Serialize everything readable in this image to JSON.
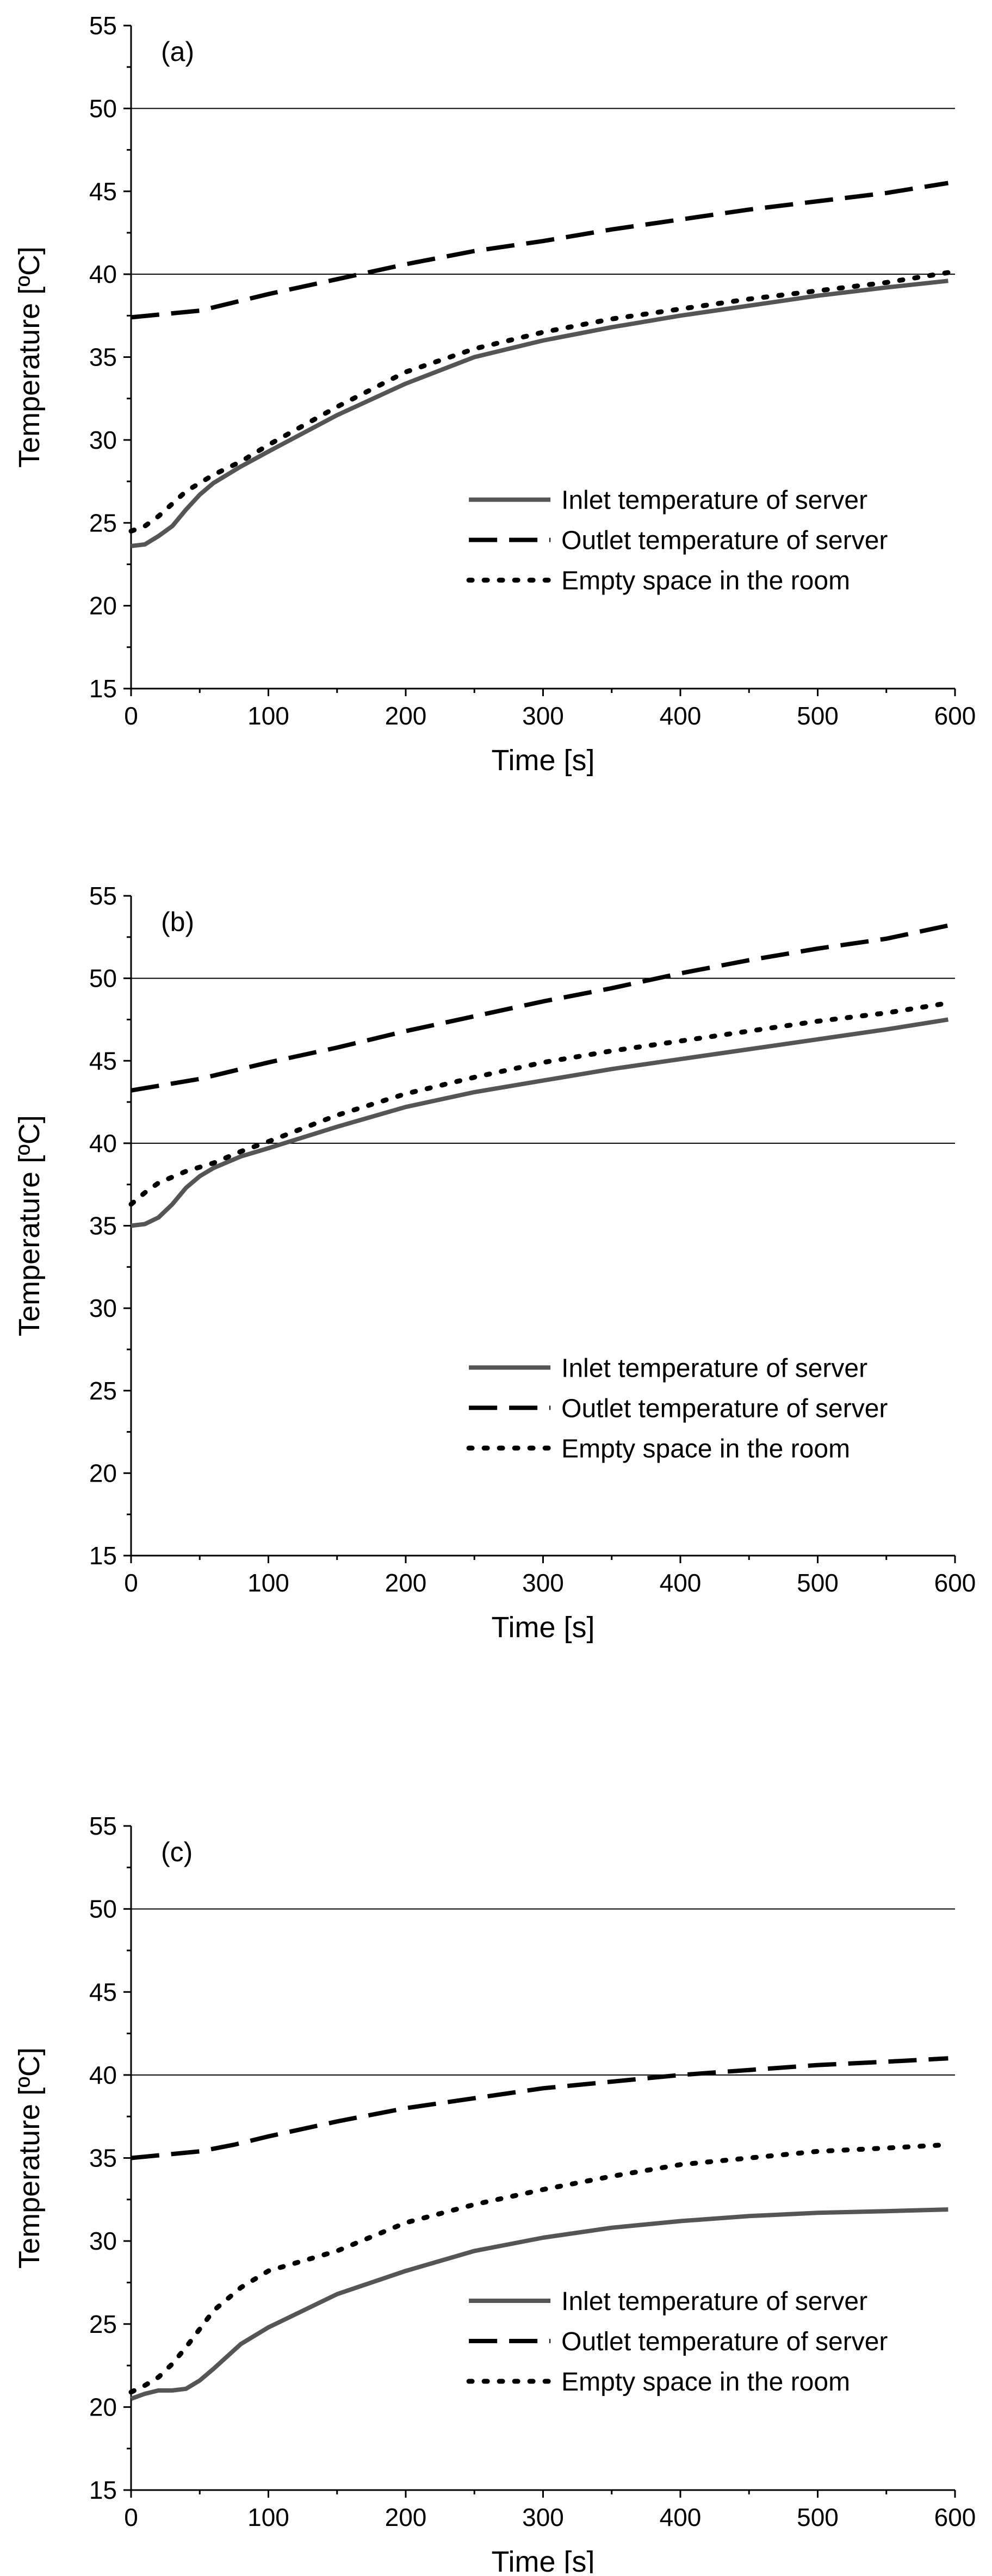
{
  "chart_data": [
    {
      "type": "line",
      "panel_label": "(a)",
      "xlabel": "Time [s]",
      "ylabel": "Temperature [ºC]",
      "xlim": [
        0,
        600
      ],
      "ylim": [
        15,
        55
      ],
      "xticks": [
        0,
        100,
        200,
        300,
        400,
        500,
        600
      ],
      "yticks": [
        15,
        20,
        25,
        30,
        35,
        40,
        45,
        50,
        55
      ],
      "reference_lines_y": [
        40,
        50
      ],
      "legend_position": "lower-right",
      "series": [
        {
          "name": "Inlet temperature of server",
          "style": "solid",
          "color": "#555555",
          "x": [
            0,
            10,
            20,
            30,
            40,
            50,
            60,
            80,
            100,
            150,
            200,
            250,
            300,
            350,
            400,
            450,
            500,
            550,
            595
          ],
          "y": [
            23.6,
            23.7,
            24.2,
            24.8,
            25.8,
            26.7,
            27.4,
            28.4,
            29.3,
            31.5,
            33.4,
            35.0,
            36.0,
            36.8,
            37.5,
            38.1,
            38.7,
            39.2,
            39.6
          ]
        },
        {
          "name": "Outlet temperature of server",
          "style": "dashed",
          "color": "#000000",
          "x": [
            0,
            50,
            100,
            150,
            200,
            250,
            300,
            350,
            400,
            450,
            500,
            550,
            595
          ],
          "y": [
            37.4,
            37.8,
            38.8,
            39.7,
            40.6,
            41.4,
            42.0,
            42.7,
            43.3,
            43.9,
            44.4,
            44.9,
            45.5
          ]
        },
        {
          "name": "Empty space in the room",
          "style": "dotted",
          "color": "#000000",
          "x": [
            0,
            10,
            20,
            40,
            60,
            80,
            100,
            150,
            200,
            250,
            300,
            350,
            400,
            450,
            500,
            550,
            595
          ],
          "y": [
            24.5,
            24.8,
            25.4,
            26.9,
            27.9,
            28.7,
            29.7,
            32.0,
            34.1,
            35.5,
            36.5,
            37.3,
            37.9,
            38.5,
            39.0,
            39.5,
            40.1
          ]
        }
      ]
    },
    {
      "type": "line",
      "panel_label": "(b)",
      "xlabel": "Time [s]",
      "ylabel": "Temperature [ºC]",
      "xlim": [
        0,
        600
      ],
      "ylim": [
        15,
        55
      ],
      "xticks": [
        0,
        100,
        200,
        300,
        400,
        500,
        600
      ],
      "yticks": [
        15,
        20,
        25,
        30,
        35,
        40,
        45,
        50,
        55
      ],
      "reference_lines_y": [
        40,
        50
      ],
      "legend_position": "lower-right",
      "series": [
        {
          "name": "Inlet temperature of server",
          "style": "solid",
          "color": "#555555",
          "x": [
            0,
            10,
            20,
            30,
            40,
            50,
            60,
            80,
            100,
            150,
            200,
            250,
            300,
            350,
            400,
            450,
            500,
            550,
            595
          ],
          "y": [
            35.0,
            35.1,
            35.5,
            36.3,
            37.3,
            38.0,
            38.5,
            39.2,
            39.7,
            41.0,
            42.2,
            43.1,
            43.8,
            44.5,
            45.1,
            45.7,
            46.3,
            46.9,
            47.5
          ]
        },
        {
          "name": "Outlet temperature of server",
          "style": "dashed",
          "color": "#000000",
          "x": [
            0,
            50,
            100,
            150,
            200,
            250,
            300,
            350,
            400,
            450,
            500,
            550,
            595
          ],
          "y": [
            43.2,
            43.9,
            44.9,
            45.8,
            46.8,
            47.7,
            48.6,
            49.4,
            50.3,
            51.1,
            51.8,
            52.4,
            53.2
          ]
        },
        {
          "name": "Empty space in the room",
          "style": "dotted",
          "color": "#000000",
          "x": [
            0,
            10,
            20,
            40,
            60,
            80,
            100,
            150,
            200,
            250,
            300,
            350,
            400,
            450,
            500,
            550,
            595
          ],
          "y": [
            36.3,
            37.0,
            37.6,
            38.3,
            38.8,
            39.5,
            40.1,
            41.7,
            43.0,
            44.0,
            44.9,
            45.6,
            46.2,
            46.8,
            47.4,
            47.9,
            48.5
          ]
        }
      ]
    },
    {
      "type": "line",
      "panel_label": "(c)",
      "xlabel": "Time [s]",
      "ylabel": "Temperature [ºC]",
      "xlim": [
        0,
        600
      ],
      "ylim": [
        15,
        55
      ],
      "xticks": [
        0,
        100,
        200,
        300,
        400,
        500,
        600
      ],
      "yticks": [
        15,
        20,
        25,
        30,
        35,
        40,
        45,
        50,
        55
      ],
      "reference_lines_y": [
        40,
        50
      ],
      "legend_position": "lower-right",
      "series": [
        {
          "name": "Inlet temperature of server",
          "style": "solid",
          "color": "#555555",
          "x": [
            0,
            10,
            20,
            30,
            40,
            50,
            60,
            80,
            100,
            150,
            200,
            250,
            300,
            350,
            400,
            450,
            500,
            550,
            595
          ],
          "y": [
            20.5,
            20.8,
            21.0,
            21.0,
            21.1,
            21.6,
            22.3,
            23.8,
            24.8,
            26.8,
            28.2,
            29.4,
            30.2,
            30.8,
            31.2,
            31.5,
            31.7,
            31.8,
            31.9
          ]
        },
        {
          "name": "Outlet temperature of server",
          "style": "dashed",
          "color": "#000000",
          "x": [
            0,
            25,
            50,
            75,
            100,
            150,
            200,
            250,
            300,
            350,
            400,
            450,
            500,
            550,
            595
          ],
          "y": [
            35.0,
            35.2,
            35.4,
            35.8,
            36.3,
            37.2,
            38.0,
            38.6,
            39.2,
            39.6,
            40.0,
            40.3,
            40.6,
            40.8,
            41.0
          ]
        },
        {
          "name": "Empty space in the room",
          "style": "dotted",
          "color": "#000000",
          "x": [
            0,
            10,
            20,
            30,
            40,
            50,
            60,
            80,
            100,
            150,
            200,
            250,
            300,
            350,
            400,
            450,
            500,
            550,
            595
          ],
          "y": [
            20.9,
            21.3,
            21.8,
            22.6,
            23.6,
            24.7,
            25.8,
            27.2,
            28.2,
            29.4,
            31.1,
            32.2,
            33.1,
            33.9,
            34.6,
            35.0,
            35.4,
            35.6,
            35.8
          ]
        }
      ]
    }
  ]
}
